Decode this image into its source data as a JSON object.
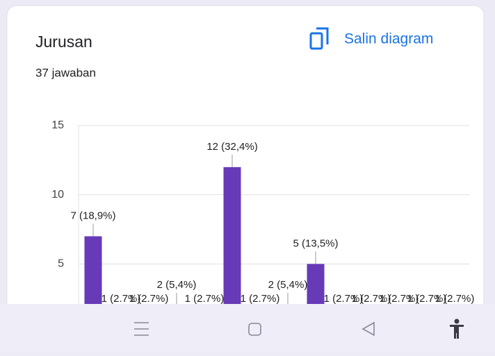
{
  "header": {
    "title": "Jurusan",
    "subtitle": "37 jawaban",
    "copy_button": "Salin diagram"
  },
  "chart_data": {
    "type": "bar",
    "categories": [
      null,
      null,
      null,
      null,
      null,
      null,
      null,
      null,
      null,
      null,
      null,
      null,
      null,
      null
    ],
    "values": [
      7,
      1,
      1,
      2,
      1,
      12,
      1,
      2,
      5,
      1,
      1,
      1,
      1,
      1
    ],
    "value_labels": [
      "7 (18,9%)",
      "1 (2.7%)",
      "1 (2.7%)",
      "2 (5,4%)",
      "1 (2.7%)",
      "12 (32,4%)",
      "1 (2.7%)",
      "2 (5,4%)",
      "5 (13,5%)",
      "1 (2.7%)",
      "1 (2.7%)",
      "1 (2.7%)",
      "1 (2.7%)",
      "1 (2.7%)"
    ],
    "color": "#673ab7",
    "ylim": [
      0,
      15
    ],
    "yticks": [
      5,
      10,
      15
    ],
    "grid": true
  }
}
